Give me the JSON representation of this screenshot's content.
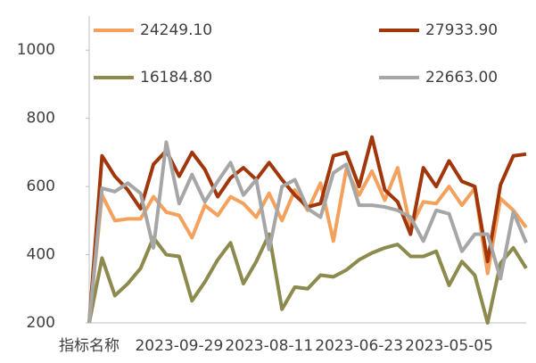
{
  "chart_data": {
    "type": "line",
    "categories": [
      "指标名称",
      null,
      null,
      null,
      null,
      null,
      null,
      "2023-09-29",
      null,
      null,
      null,
      null,
      null,
      null,
      "2023-08-11",
      null,
      null,
      null,
      null,
      null,
      null,
      "2023-06-23",
      null,
      null,
      null,
      null,
      null,
      null,
      "2023-05-05",
      null,
      null,
      null,
      null,
      null,
      null
    ],
    "series": [
      {
        "name": "24249.10",
        "color": "#f4a15d",
        "values": [
          200,
          575,
          500,
          505,
          505,
          570,
          525,
          515,
          450,
          545,
          515,
          570,
          550,
          510,
          580,
          500,
          590,
          530,
          610,
          440,
          650,
          575,
          645,
          560,
          655,
          480,
          555,
          550,
          600,
          545,
          595,
          345,
          565,
          530,
          480
        ]
      },
      {
        "name": "27933.90",
        "color": "#a0360a",
        "values": [
          200,
          690,
          630,
          590,
          535,
          665,
          705,
          630,
          700,
          650,
          570,
          625,
          655,
          620,
          670,
          620,
          575,
          540,
          550,
          690,
          700,
          600,
          745,
          590,
          555,
          460,
          655,
          600,
          675,
          615,
          600,
          380,
          605,
          690,
          695
        ]
      },
      {
        "name": "16184.80",
        "color": "#8c8a4c",
        "values": [
          200,
          390,
          280,
          315,
          360,
          450,
          400,
          395,
          265,
          320,
          385,
          435,
          315,
          380,
          460,
          240,
          305,
          300,
          340,
          335,
          355,
          385,
          405,
          420,
          430,
          395,
          395,
          410,
          310,
          380,
          340,
          200,
          375,
          420,
          360
        ]
      },
      {
        "name": "22663.00",
        "color": "#a6a6a6",
        "values": [
          200,
          595,
          585,
          610,
          580,
          420,
          730,
          550,
          635,
          555,
          615,
          670,
          575,
          620,
          415,
          600,
          620,
          535,
          510,
          640,
          665,
          545,
          545,
          540,
          530,
          510,
          440,
          530,
          520,
          410,
          460,
          460,
          330,
          525,
          435
        ]
      }
    ],
    "ylim": [
      200,
      1100
    ],
    "yticks": [
      200,
      400,
      600,
      800,
      1000
    ]
  }
}
